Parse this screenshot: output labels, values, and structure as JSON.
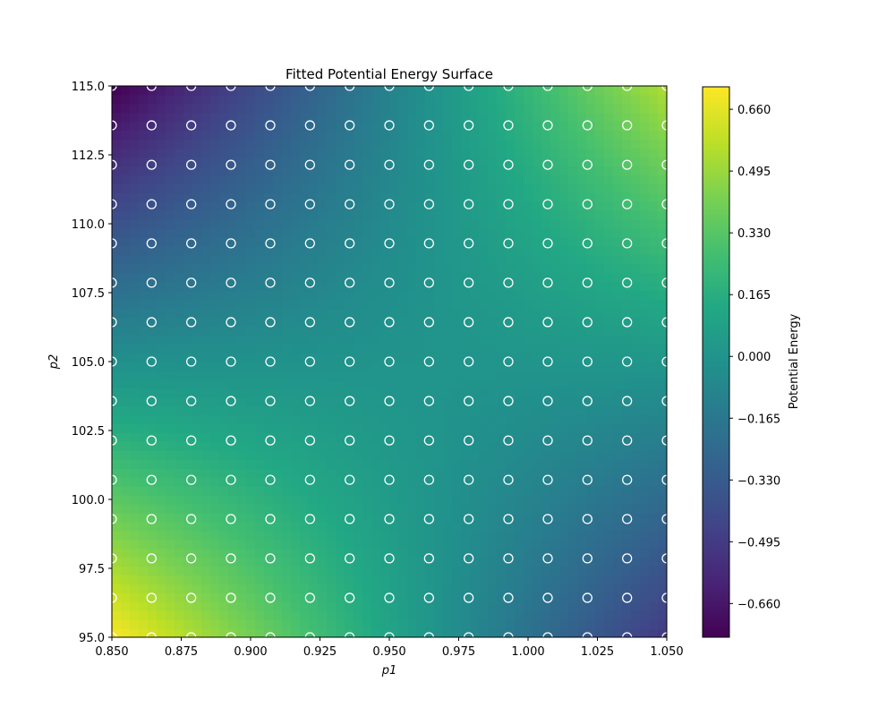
{
  "chart_data": {
    "type": "heatmap",
    "subtype": "filled-contour-with-scatter",
    "title": "Fitted Potential Energy Surface",
    "xlabel": "p1",
    "ylabel": "p2",
    "colorbar_label": "Potential Energy",
    "colormap": "viridis",
    "xlim": [
      0.85,
      1.05
    ],
    "ylim": [
      95.0,
      115.0
    ],
    "zlim": [
      -0.75,
      0.72
    ],
    "x_ticks": [
      "0.850",
      "0.875",
      "0.900",
      "0.925",
      "0.950",
      "0.975",
      "1.000",
      "1.025",
      "1.050"
    ],
    "y_ticks": [
      "95.0",
      "97.5",
      "100.0",
      "102.5",
      "105.0",
      "107.5",
      "110.0",
      "112.5",
      "115.0"
    ],
    "colorbar_ticks": [
      "-0.660",
      "-0.495",
      "-0.330",
      "-0.165",
      "0.000",
      "0.165",
      "0.330",
      "0.495",
      "0.660"
    ],
    "colorbar_tick_values": [
      -0.66,
      -0.495,
      -0.33,
      -0.165,
      0.0,
      0.165,
      0.33,
      0.495,
      0.66
    ],
    "grid": false,
    "x": [
      0.85,
      0.8643,
      0.8786,
      0.8929,
      0.9071,
      0.9214,
      0.9357,
      0.95,
      0.9643,
      0.9786,
      0.9929,
      1.0071,
      1.0214,
      1.0357,
      1.05
    ],
    "y": [
      95.0,
      96.43,
      97.86,
      99.29,
      100.71,
      102.14,
      103.57,
      105.0,
      106.43,
      107.86,
      109.29,
      110.71,
      112.14,
      113.57,
      115.0
    ],
    "z_model": "z = 0.63*u*v + 0.02*u - 0.105*v, u=(p1-0.95)/0.1, v=(p2-105)/10",
    "scatter_points": "white hollow circles at every (x, y) grid node (15 x 15)"
  },
  "figure": {
    "title": "Fitted Potential Energy Surface",
    "xlabel": "p1",
    "ylabel": "p2",
    "colorbar_label": "Potential Energy"
  }
}
